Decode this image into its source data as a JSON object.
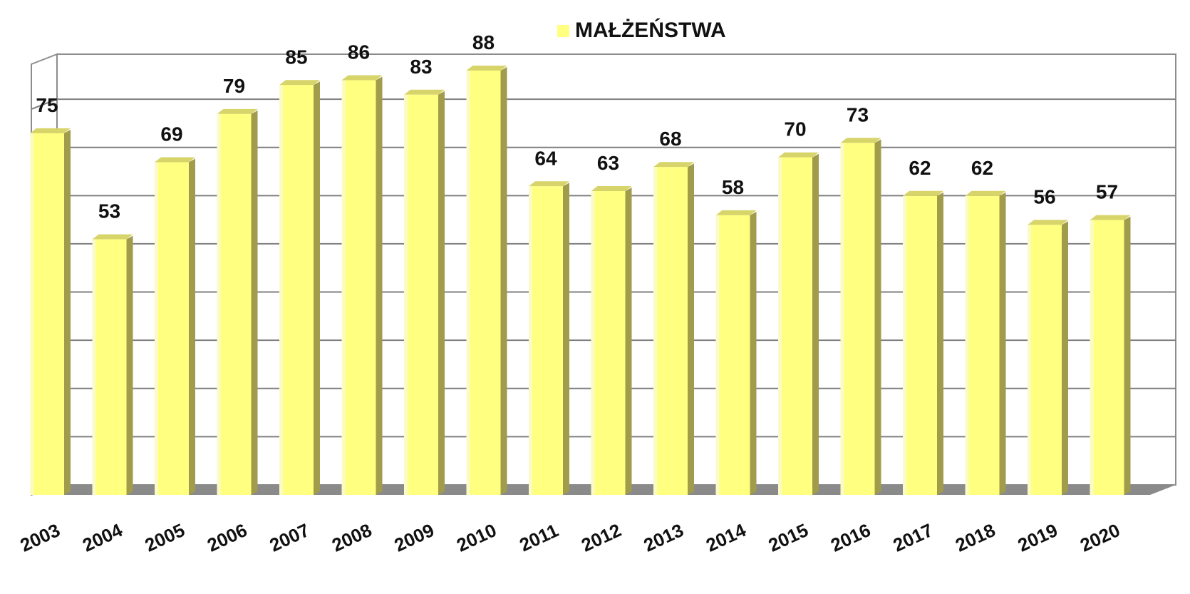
{
  "chart_data": {
    "type": "bar",
    "title": "",
    "xlabel": "",
    "ylabel": "",
    "categories": [
      "2003",
      "2004",
      "2005",
      "2006",
      "2007",
      "2008",
      "2009",
      "2010",
      "2011",
      "2012",
      "2013",
      "2014",
      "2015",
      "2016",
      "2017",
      "2018",
      "2019",
      "2020"
    ],
    "series": [
      {
        "name": "MAŁŻEŃSTWA",
        "values": [
          75,
          53,
          69,
          79,
          85,
          86,
          83,
          88,
          64,
          63,
          68,
          58,
          70,
          73,
          62,
          62,
          56,
          57
        ]
      }
    ],
    "ylim": [
      0,
      90
    ],
    "grid": true,
    "legend_position": "top",
    "data_labels": true,
    "colors": {
      "bar_front": "#ffff80",
      "bar_side": "#a19c4c",
      "floor": "#8a8a8a",
      "grid": "#7f7f7f"
    }
  }
}
